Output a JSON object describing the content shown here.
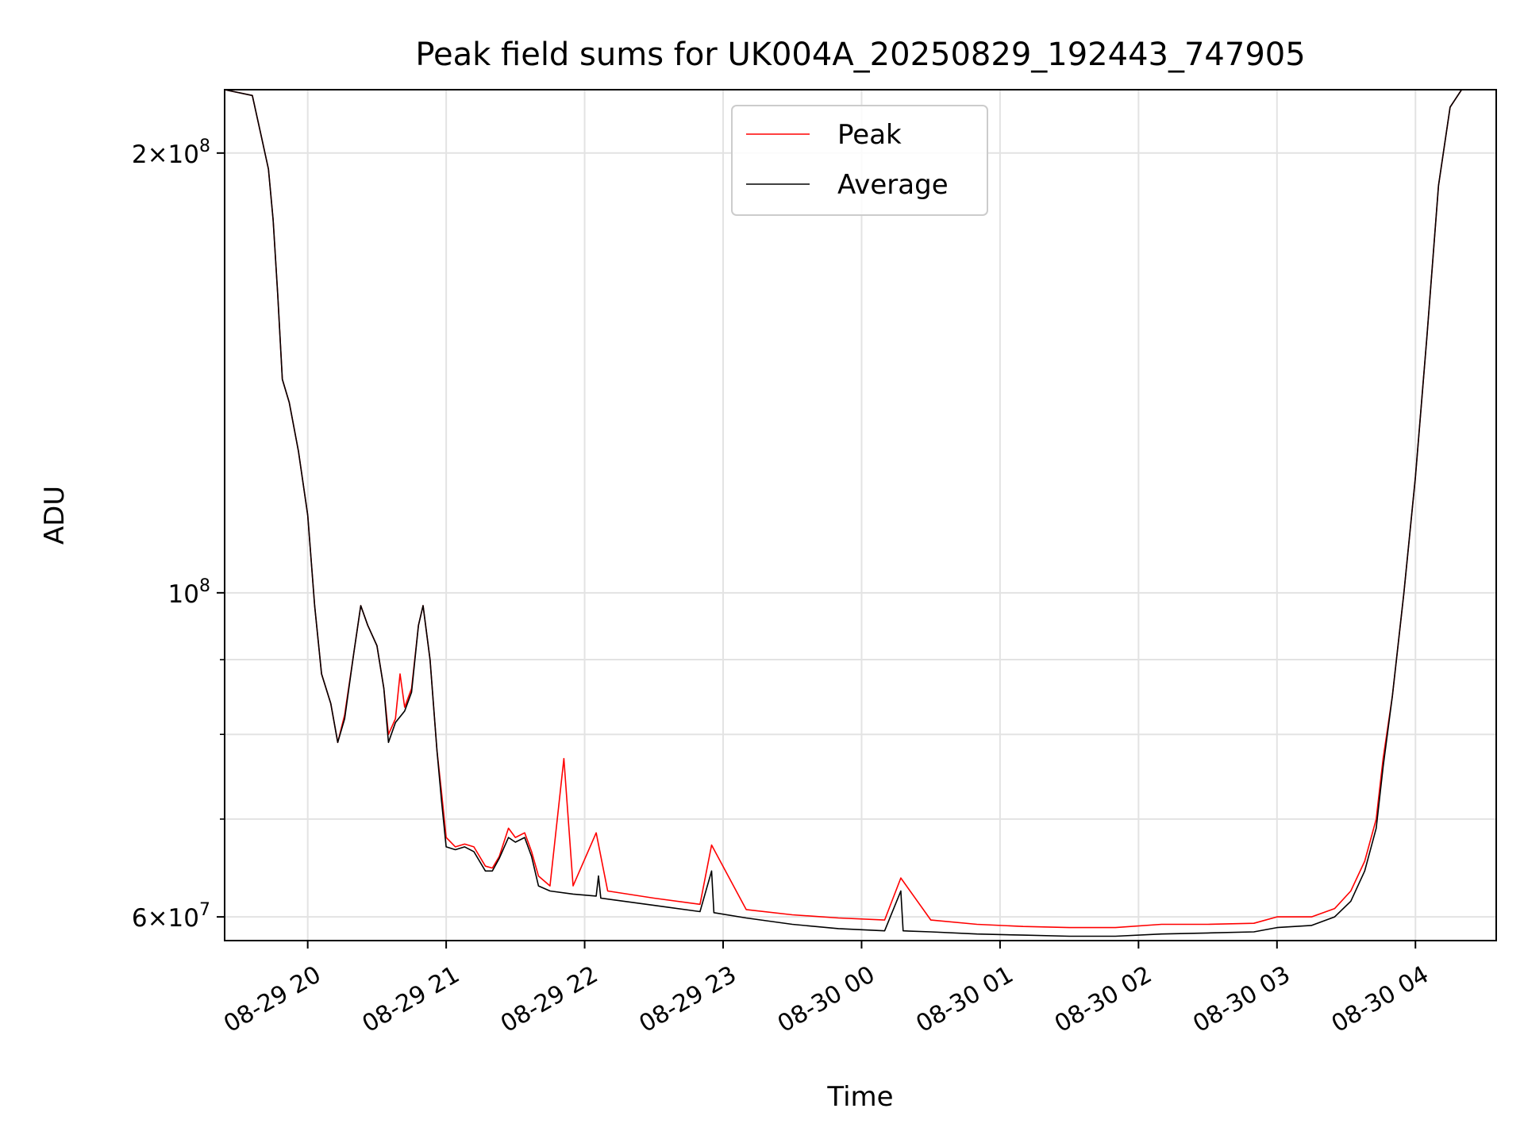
{
  "chart_data": {
    "type": "line",
    "title": "Peak field sums for UK004A_20250829_192443_747905",
    "xlabel": "Time",
    "ylabel": "ADU",
    "y_scale": "log",
    "ylim": [
      57800000,
      221000000
    ],
    "xlim": [
      "2025-08-29 19:24",
      "2025-08-30 04:35"
    ],
    "x_ticks": [
      "2025-08-29 20:00",
      "2025-08-29 21:00",
      "2025-08-29 22:00",
      "2025-08-29 23:00",
      "2025-08-30 00:00",
      "2025-08-30 01:00",
      "2025-08-30 02:00",
      "2025-08-30 03:00",
      "2025-08-30 04:00"
    ],
    "x_tick_labels": [
      "08-29 20",
      "08-29 21",
      "08-29 22",
      "08-29 23",
      "08-30 00",
      "08-30 01",
      "08-30 02",
      "08-30 03",
      "08-30 04"
    ],
    "y_major_ticks": [
      {
        "value": 60000000,
        "mantissa": "6",
        "exponent": "7"
      },
      {
        "value": 100000000,
        "mantissa": "",
        "exponent": "8"
      },
      {
        "value": 200000000,
        "mantissa": "2",
        "exponent": "8"
      }
    ],
    "y_minor_ticks": [
      70000000,
      80000000,
      90000000
    ],
    "grid": true,
    "legend_position": "upper center",
    "series": [
      {
        "name": "Peak",
        "color": "#ff0000",
        "points": [
          [
            "2025-08-29 19:24",
            221000000
          ],
          [
            "2025-08-29 19:36",
            219000000
          ],
          [
            "2025-08-29 19:40",
            205000000
          ],
          [
            "2025-08-29 19:43",
            195000000
          ],
          [
            "2025-08-29 19:45",
            180000000
          ],
          [
            "2025-08-29 19:47",
            160000000
          ],
          [
            "2025-08-29 19:49",
            140000000
          ],
          [
            "2025-08-29 19:52",
            135000000
          ],
          [
            "2025-08-29 19:56",
            125000000
          ],
          [
            "2025-08-29 20:00",
            113000000
          ],
          [
            "2025-08-29 20:03",
            98000000
          ],
          [
            "2025-08-29 20:06",
            88000000
          ],
          [
            "2025-08-29 20:10",
            84000000
          ],
          [
            "2025-08-29 20:13",
            79000000
          ],
          [
            "2025-08-29 20:16",
            82500000
          ],
          [
            "2025-08-29 20:20",
            91000000
          ],
          [
            "2025-08-29 20:23",
            98000000
          ],
          [
            "2025-08-29 20:26",
            95000000
          ],
          [
            "2025-08-29 20:30",
            92000000
          ],
          [
            "2025-08-29 20:33",
            86000000
          ],
          [
            "2025-08-29 20:35",
            80000000
          ],
          [
            "2025-08-29 20:38",
            82000000
          ],
          [
            "2025-08-29 20:40",
            88000000
          ],
          [
            "2025-08-29 20:42",
            83500000
          ],
          [
            "2025-08-29 20:45",
            86000000
          ],
          [
            "2025-08-29 20:48",
            95000000
          ],
          [
            "2025-08-29 20:50",
            98000000
          ],
          [
            "2025-08-29 20:53",
            90000000
          ],
          [
            "2025-08-29 20:56",
            78000000
          ],
          [
            "2025-08-29 20:58",
            73000000
          ],
          [
            "2025-08-29 21:00",
            68000000
          ],
          [
            "2025-08-29 21:04",
            67000000
          ],
          [
            "2025-08-29 21:08",
            67300000
          ],
          [
            "2025-08-29 21:12",
            67000000
          ],
          [
            "2025-08-29 21:17",
            65000000
          ],
          [
            "2025-08-29 21:20",
            64800000
          ],
          [
            "2025-08-29 21:23",
            66000000
          ],
          [
            "2025-08-29 21:27",
            69000000
          ],
          [
            "2025-08-29 21:30",
            68000000
          ],
          [
            "2025-08-29 21:34",
            68500000
          ],
          [
            "2025-08-29 21:37",
            66500000
          ],
          [
            "2025-08-29 21:40",
            64000000
          ],
          [
            "2025-08-29 21:45",
            63000000
          ],
          [
            "2025-08-29 21:51",
            77000000
          ],
          [
            "2025-08-29 21:55",
            63000000
          ],
          [
            "2025-08-29 22:05",
            68500000
          ],
          [
            "2025-08-29 22:10",
            62500000
          ],
          [
            "2025-08-29 22:30",
            61800000
          ],
          [
            "2025-08-29 22:50",
            61200000
          ],
          [
            "2025-08-29 22:55",
            67200000
          ],
          [
            "2025-08-29 23:10",
            60700000
          ],
          [
            "2025-08-29 23:30",
            60200000
          ],
          [
            "2025-08-29 23:50",
            59900000
          ],
          [
            "2025-08-30 00:10",
            59700000
          ],
          [
            "2025-08-30 00:17",
            63800000
          ],
          [
            "2025-08-30 00:30",
            59700000
          ],
          [
            "2025-08-30 00:50",
            59300000
          ],
          [
            "2025-08-30 01:10",
            59100000
          ],
          [
            "2025-08-30 01:30",
            59000000
          ],
          [
            "2025-08-30 01:50",
            59000000
          ],
          [
            "2025-08-30 02:10",
            59300000
          ],
          [
            "2025-08-30 02:30",
            59300000
          ],
          [
            "2025-08-30 02:50",
            59400000
          ],
          [
            "2025-08-30 03:00",
            60000000
          ],
          [
            "2025-08-30 03:15",
            60000000
          ],
          [
            "2025-08-30 03:25",
            60800000
          ],
          [
            "2025-08-30 03:32",
            62500000
          ],
          [
            "2025-08-30 03:38",
            65500000
          ],
          [
            "2025-08-30 03:43",
            70000000
          ],
          [
            "2025-08-30 03:46",
            77000000
          ],
          [
            "2025-08-30 03:50",
            85000000
          ],
          [
            "2025-08-30 03:55",
            100000000
          ],
          [
            "2025-08-30 04:00",
            120000000
          ],
          [
            "2025-08-30 04:05",
            150000000
          ],
          [
            "2025-08-30 04:10",
            190000000
          ],
          [
            "2025-08-30 04:15",
            215000000
          ],
          [
            "2025-08-30 04:20",
            221000000
          ],
          [
            "2025-08-30 04:35",
            221000000
          ]
        ]
      },
      {
        "name": "Average",
        "color": "#000000",
        "points": [
          [
            "2025-08-29 19:24",
            221000000
          ],
          [
            "2025-08-29 19:36",
            219000000
          ],
          [
            "2025-08-29 19:40",
            205000000
          ],
          [
            "2025-08-29 19:43",
            195000000
          ],
          [
            "2025-08-29 19:45",
            180000000
          ],
          [
            "2025-08-29 19:47",
            160000000
          ],
          [
            "2025-08-29 19:49",
            140000000
          ],
          [
            "2025-08-29 19:52",
            135000000
          ],
          [
            "2025-08-29 19:56",
            125000000
          ],
          [
            "2025-08-29 20:00",
            113000000
          ],
          [
            "2025-08-29 20:03",
            98000000
          ],
          [
            "2025-08-29 20:06",
            88000000
          ],
          [
            "2025-08-29 20:10",
            84000000
          ],
          [
            "2025-08-29 20:13",
            79000000
          ],
          [
            "2025-08-29 20:16",
            82000000
          ],
          [
            "2025-08-29 20:20",
            91000000
          ],
          [
            "2025-08-29 20:23",
            98000000
          ],
          [
            "2025-08-29 20:26",
            95000000
          ],
          [
            "2025-08-29 20:30",
            92000000
          ],
          [
            "2025-08-29 20:33",
            86000000
          ],
          [
            "2025-08-29 20:35",
            79000000
          ],
          [
            "2025-08-29 20:38",
            81500000
          ],
          [
            "2025-08-29 20:42",
            83000000
          ],
          [
            "2025-08-29 20:45",
            85500000
          ],
          [
            "2025-08-29 20:48",
            95000000
          ],
          [
            "2025-08-29 20:50",
            98000000
          ],
          [
            "2025-08-29 20:53",
            90000000
          ],
          [
            "2025-08-29 20:56",
            78000000
          ],
          [
            "2025-08-29 20:58",
            72000000
          ],
          [
            "2025-08-29 21:00",
            67000000
          ],
          [
            "2025-08-29 21:04",
            66700000
          ],
          [
            "2025-08-29 21:08",
            67000000
          ],
          [
            "2025-08-29 21:12",
            66500000
          ],
          [
            "2025-08-29 21:17",
            64500000
          ],
          [
            "2025-08-29 21:20",
            64500000
          ],
          [
            "2025-08-29 21:23",
            65800000
          ],
          [
            "2025-08-29 21:27",
            68000000
          ],
          [
            "2025-08-29 21:30",
            67500000
          ],
          [
            "2025-08-29 21:34",
            68000000
          ],
          [
            "2025-08-29 21:37",
            66000000
          ],
          [
            "2025-08-29 21:40",
            63000000
          ],
          [
            "2025-08-29 21:45",
            62500000
          ],
          [
            "2025-08-29 21:55",
            62200000
          ],
          [
            "2025-08-29 22:05",
            62000000
          ],
          [
            "2025-08-29 22:06",
            64000000
          ],
          [
            "2025-08-29 22:07",
            61800000
          ],
          [
            "2025-08-29 22:30",
            61100000
          ],
          [
            "2025-08-29 22:50",
            60500000
          ],
          [
            "2025-08-29 22:55",
            64500000
          ],
          [
            "2025-08-29 22:56",
            60400000
          ],
          [
            "2025-08-29 23:10",
            59900000
          ],
          [
            "2025-08-29 23:30",
            59300000
          ],
          [
            "2025-08-29 23:50",
            58900000
          ],
          [
            "2025-08-30 00:10",
            58700000
          ],
          [
            "2025-08-30 00:17",
            62500000
          ],
          [
            "2025-08-30 00:18",
            58700000
          ],
          [
            "2025-08-30 00:30",
            58600000
          ],
          [
            "2025-08-30 00:50",
            58400000
          ],
          [
            "2025-08-30 01:10",
            58300000
          ],
          [
            "2025-08-30 01:30",
            58200000
          ],
          [
            "2025-08-30 01:50",
            58200000
          ],
          [
            "2025-08-30 02:10",
            58400000
          ],
          [
            "2025-08-30 02:30",
            58500000
          ],
          [
            "2025-08-30 02:50",
            58600000
          ],
          [
            "2025-08-30 03:00",
            59000000
          ],
          [
            "2025-08-30 03:15",
            59200000
          ],
          [
            "2025-08-30 03:25",
            60000000
          ],
          [
            "2025-08-30 03:32",
            61500000
          ],
          [
            "2025-08-30 03:38",
            64500000
          ],
          [
            "2025-08-30 03:43",
            69000000
          ],
          [
            "2025-08-30 03:46",
            76000000
          ],
          [
            "2025-08-30 03:50",
            85000000
          ],
          [
            "2025-08-30 03:55",
            100000000
          ],
          [
            "2025-08-30 04:00",
            120000000
          ],
          [
            "2025-08-30 04:05",
            150000000
          ],
          [
            "2025-08-30 04:10",
            190000000
          ],
          [
            "2025-08-30 04:15",
            215000000
          ],
          [
            "2025-08-30 04:20",
            221000000
          ],
          [
            "2025-08-30 04:35",
            221000000
          ]
        ]
      }
    ]
  }
}
